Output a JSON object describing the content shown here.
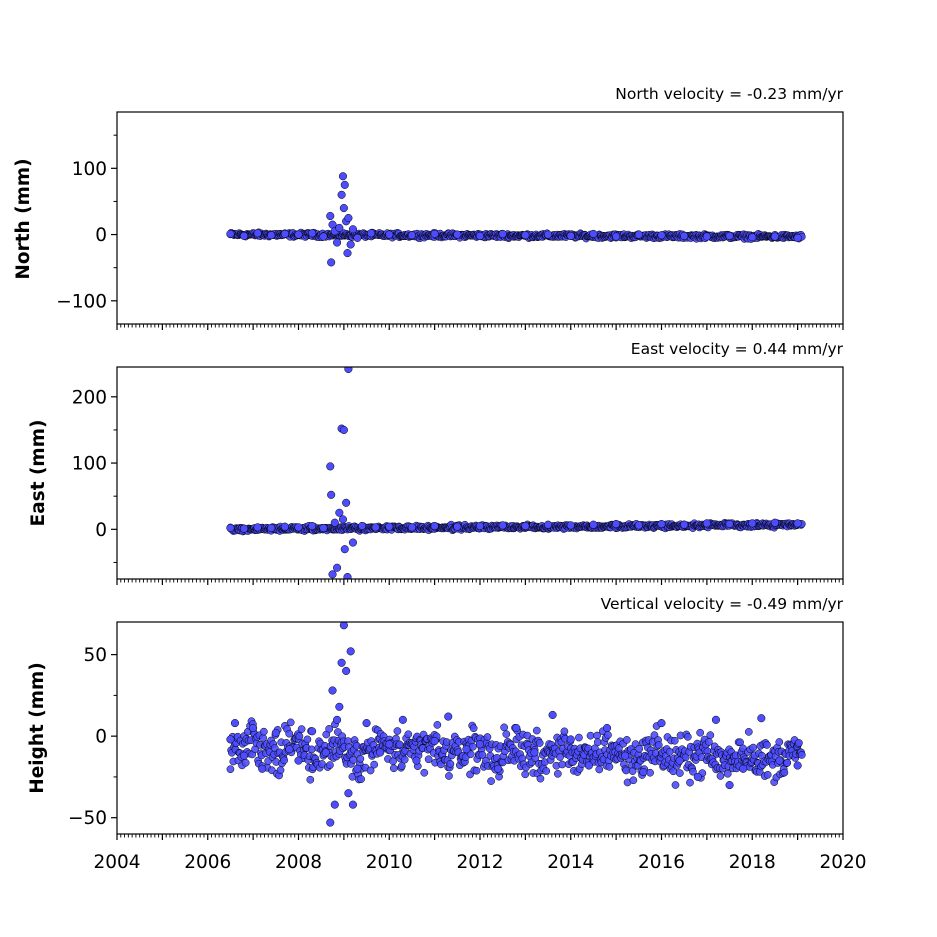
{
  "chart_data": [
    {
      "type": "scatter",
      "title": "North velocity = -0.23 mm/yr",
      "ylabel": "North (mm)",
      "xlim": [
        2004,
        2020
      ],
      "ylim": [
        -135,
        185
      ],
      "yticks": [
        100,
        0,
        -100
      ],
      "ytick_labels": [
        "100",
        "0",
        "−100"
      ],
      "x_tick_labels_shown": false,
      "series": [
        {
          "color": "#4d4dff",
          "edge_color": "#000000",
          "x": [
            2006.5,
            2006.8,
            2007.1,
            2007.4,
            2007.7,
            2008.0,
            2008.3,
            2008.55,
            2008.7,
            2008.72,
            2008.75,
            2008.8,
            2008.85,
            2008.9,
            2008.95,
            2008.98,
            2009.0,
            2009.02,
            2009.05,
            2009.08,
            2009.1,
            2009.15,
            2009.2,
            2009.3,
            2009.6,
            2010.0,
            2010.5,
            2011.0,
            2011.5,
            2012.0,
            2012.5,
            2013.0,
            2013.5,
            2014.0,
            2014.5,
            2015.0,
            2015.5,
            2016.0,
            2016.5,
            2017.0,
            2017.5,
            2018.0,
            2018.5,
            2019.0
          ],
          "y": [
            1,
            -2,
            2,
            -1,
            1,
            0,
            2,
            -3,
            28,
            -42,
            15,
            5,
            -12,
            10,
            60,
            88,
            40,
            75,
            20,
            -28,
            25,
            -15,
            8,
            -5,
            2,
            0,
            -1,
            1,
            0,
            -2,
            1,
            -1,
            0,
            -2,
            1,
            -3,
            0,
            -1,
            -2,
            -3,
            -2,
            -4,
            -3,
            -5
          ]
        }
      ]
    },
    {
      "type": "scatter",
      "title": "East velocity = 0.44 mm/yr",
      "ylabel": "East (mm)",
      "xlim": [
        2004,
        2020
      ],
      "ylim": [
        -75,
        245
      ],
      "yticks": [
        200,
        100,
        0
      ],
      "ytick_labels": [
        "200",
        "100",
        "0"
      ],
      "x_tick_labels_shown": false,
      "series": [
        {
          "color": "#4d4dff",
          "edge_color": "#000000",
          "x": [
            2006.5,
            2006.8,
            2007.1,
            2007.4,
            2007.7,
            2008.0,
            2008.3,
            2008.55,
            2008.7,
            2008.72,
            2008.75,
            2008.8,
            2008.85,
            2008.9,
            2008.95,
            2008.98,
            2009.0,
            2009.02,
            2009.05,
            2009.08,
            2009.1,
            2009.2,
            2009.4,
            2009.7,
            2010.0,
            2010.5,
            2011.0,
            2011.5,
            2012.0,
            2012.5,
            2013.0,
            2013.5,
            2014.0,
            2014.5,
            2015.0,
            2015.5,
            2016.0,
            2016.5,
            2017.0,
            2017.5,
            2018.0,
            2018.5,
            2019.0
          ],
          "y": [
            2,
            1,
            3,
            2,
            4,
            3,
            5,
            2,
            95,
            52,
            -68,
            10,
            -58,
            25,
            152,
            15,
            150,
            -30,
            40,
            -72,
            242,
            -20,
            5,
            3,
            4,
            3,
            5,
            4,
            5,
            6,
            5,
            7,
            6,
            7,
            8,
            6,
            8,
            7,
            9,
            8,
            9,
            10,
            9
          ]
        }
      ]
    },
    {
      "type": "scatter",
      "title": "Vertical velocity = -0.49 mm/yr",
      "ylabel": "Height (mm)",
      "xlim": [
        2004,
        2020
      ],
      "ylim": [
        -60,
        70
      ],
      "yticks": [
        50,
        0,
        -50
      ],
      "ytick_labels": [
        "50",
        "0",
        "−50"
      ],
      "x_tick_labels_shown": true,
      "xticks": [
        2004,
        2006,
        2008,
        2010,
        2012,
        2014,
        2016,
        2018,
        2020
      ],
      "xtick_labels": [
        "2004",
        "2006",
        "2008",
        "2010",
        "2012",
        "2014",
        "2016",
        "2018",
        "2020"
      ],
      "series": [
        {
          "color": "#4d4dff",
          "edge_color": "#000000",
          "x": [
            2006.5,
            2006.6,
            2006.8,
            2007.0,
            2007.2,
            2007.5,
            2007.8,
            2008.0,
            2008.3,
            2008.6,
            2008.7,
            2008.75,
            2008.8,
            2008.85,
            2008.9,
            2008.95,
            2009.0,
            2009.05,
            2009.1,
            2009.15,
            2009.2,
            2009.3,
            2009.5,
            2009.8,
            2010.0,
            2010.3,
            2010.6,
            2011.0,
            2011.3,
            2011.7,
            2012.0,
            2012.4,
            2012.8,
            2013.2,
            2013.6,
            2014.0,
            2014.4,
            2014.8,
            2015.2,
            2015.6,
            2016.0,
            2016.4,
            2016.8,
            2017.2,
            2017.5,
            2017.8,
            2018.2,
            2018.6,
            2019.0
          ],
          "y": [
            -2,
            8,
            -12,
            5,
            -20,
            2,
            -8,
            -15,
            3,
            -10,
            -53,
            28,
            -42,
            10,
            18,
            45,
            68,
            40,
            -35,
            52,
            -42,
            -20,
            8,
            -10,
            -5,
            10,
            -15,
            -3,
            12,
            -8,
            -5,
            -20,
            5,
            -10,
            13,
            -2,
            -18,
            5,
            -12,
            -22,
            8,
            -15,
            -25,
            10,
            -30,
            -20,
            11,
            -15,
            -18
          ]
        }
      ]
    }
  ]
}
